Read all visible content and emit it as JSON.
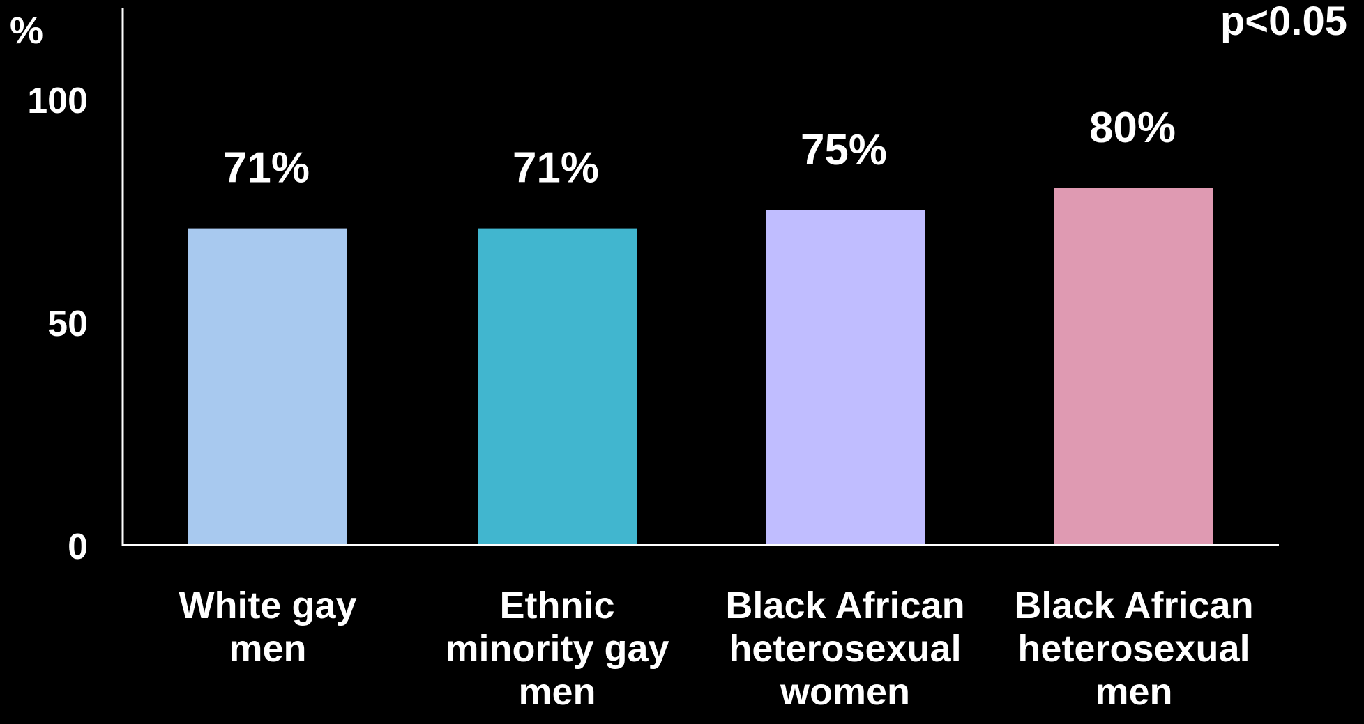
{
  "chart_data": {
    "type": "bar",
    "unit_label": "%",
    "annotation": "p<0.05",
    "categories": [
      [
        "White gay",
        "men"
      ],
      [
        "Ethnic",
        "minority gay",
        "men"
      ],
      [
        "Black African",
        "heterosexual",
        "women"
      ],
      [
        "Black African",
        "heterosexual",
        "men"
      ]
    ],
    "values": [
      71,
      71,
      75,
      80
    ],
    "data_labels": [
      "71%",
      "71%",
      "75%",
      "80%"
    ],
    "colors": [
      "#a8c9ef",
      "#41b6cf",
      "#c0bdff",
      "#df9ab2"
    ],
    "ylim": [
      0,
      120
    ],
    "yticks": [
      0,
      50,
      100
    ],
    "grid": false,
    "legend": "none",
    "axis_color": "#ffffff",
    "background": "#000000"
  }
}
